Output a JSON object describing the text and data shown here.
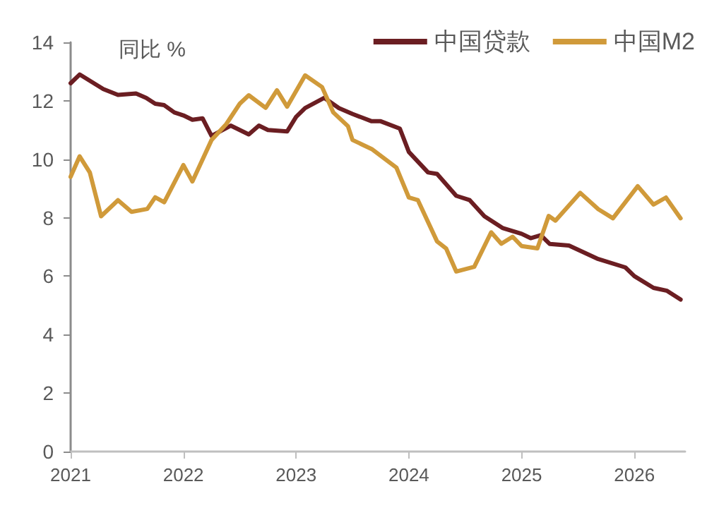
{
  "chart_data": {
    "type": "line",
    "ylabel": "同比 %",
    "xlim": [
      2021,
      2026.45
    ],
    "xticks": [
      2021,
      2022,
      2023,
      2024,
      2025,
      2026
    ],
    "ylim": [
      0,
      14
    ],
    "yticks": [
      0,
      2,
      4,
      6,
      8,
      10,
      12,
      14
    ],
    "grid": false,
    "legend": "top right",
    "marker": "none",
    "line_style": "solid",
    "series": [
      {
        "name": "中国贷款",
        "color": "#6b1e22",
        "x": [
          2021.0,
          2021.08,
          2021.29,
          2021.42,
          2021.58,
          2021.67,
          2021.75,
          2021.83,
          2021.92,
          2022.0,
          2022.08,
          2022.17,
          2022.25,
          2022.42,
          2022.58,
          2022.67,
          2022.75,
          2022.92,
          2023.0,
          2023.08,
          2023.25,
          2023.38,
          2023.5,
          2023.67,
          2023.75,
          2023.92,
          2024.0,
          2024.17,
          2024.25,
          2024.42,
          2024.54,
          2024.67,
          2024.83,
          2025.0,
          2025.08,
          2025.17,
          2025.25,
          2025.42,
          2025.67,
          2025.92,
          2026.0,
          2026.17,
          2026.29,
          2026.41
        ],
        "values": [
          12.6,
          12.9,
          12.4,
          12.2,
          12.25,
          12.1,
          11.9,
          11.85,
          11.6,
          11.5,
          11.35,
          11.4,
          10.8,
          11.15,
          10.85,
          11.15,
          11.0,
          10.95,
          11.45,
          11.75,
          12.1,
          11.75,
          11.55,
          11.3,
          11.3,
          11.05,
          10.25,
          9.55,
          9.5,
          8.75,
          8.6,
          8.05,
          7.65,
          7.45,
          7.3,
          7.4,
          7.1,
          7.05,
          6.6,
          6.3,
          6.0,
          5.6,
          5.5,
          5.2
        ]
      },
      {
        "name": "中国M2",
        "color": "#d09a3a",
        "x": [
          2021.0,
          2021.08,
          2021.17,
          2021.27,
          2021.42,
          2021.54,
          2021.68,
          2021.75,
          2021.83,
          2022.0,
          2022.08,
          2022.25,
          2022.38,
          2022.5,
          2022.58,
          2022.73,
          2022.83,
          2022.92,
          2023.08,
          2023.23,
          2023.33,
          2023.46,
          2023.5,
          2023.67,
          2023.89,
          2024.0,
          2024.08,
          2024.25,
          2024.33,
          2024.42,
          2024.58,
          2024.73,
          2024.82,
          2024.92,
          2025.0,
          2025.14,
          2025.24,
          2025.3,
          2025.52,
          2025.68,
          2025.81,
          2026.03,
          2026.17,
          2026.28,
          2026.41
        ],
        "values": [
          9.4,
          10.1,
          9.55,
          8.05,
          8.6,
          8.2,
          8.3,
          8.7,
          8.53,
          9.8,
          9.24,
          10.66,
          11.2,
          11.9,
          12.19,
          11.76,
          12.36,
          11.8,
          12.87,
          12.47,
          11.6,
          11.13,
          10.66,
          10.35,
          9.71,
          8.69,
          8.6,
          7.19,
          6.95,
          6.16,
          6.32,
          7.5,
          7.11,
          7.35,
          7.03,
          6.95,
          8.06,
          7.9,
          8.85,
          8.29,
          7.98,
          9.08,
          8.45,
          8.69,
          7.98
        ]
      }
    ]
  }
}
